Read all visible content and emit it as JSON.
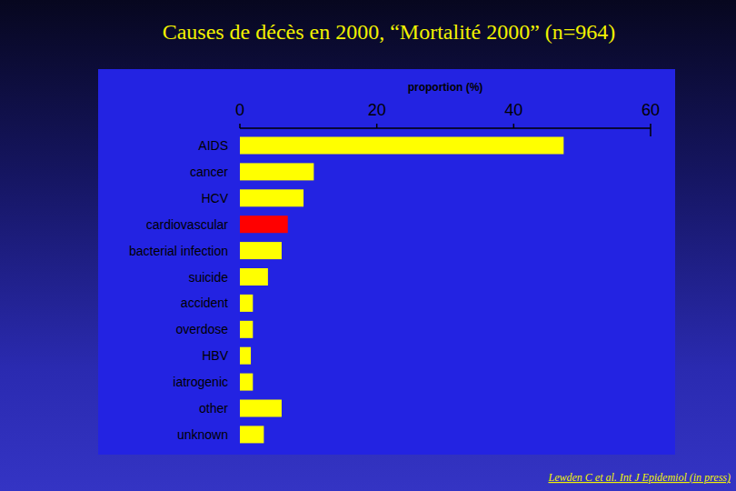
{
  "chart_data": {
    "type": "bar",
    "orientation": "horizontal",
    "title": "Causes de décès en 2000, “Mortalité 2000” (n=964)",
    "x_label": "proportion (%)",
    "categories": [
      "AIDS",
      "cancer",
      "HCV",
      "cardiovascular",
      "bacterial infection",
      "suicide",
      "accident",
      "overdose",
      "HBV",
      "iatrogenic",
      "other",
      "unknown"
    ],
    "values": [
      47.3,
      10.8,
      9.3,
      7.0,
      6.1,
      4.1,
      1.9,
      1.9,
      1.6,
      1.9,
      6.1,
      3.5
    ],
    "colors": [
      "#ffff00",
      "#ffff00",
      "#ffff00",
      "#ff0000",
      "#ffff00",
      "#ffff00",
      "#ffff00",
      "#ffff00",
      "#ffff00",
      "#ffff00",
      "#ffff00",
      "#ffff00"
    ],
    "xlim": [
      0,
      60
    ],
    "xticks": [
      0,
      20,
      40,
      60
    ],
    "grid": false,
    "annotations": [
      "Lewden C et al. Int J Epidemiol (in press)"
    ]
  }
}
